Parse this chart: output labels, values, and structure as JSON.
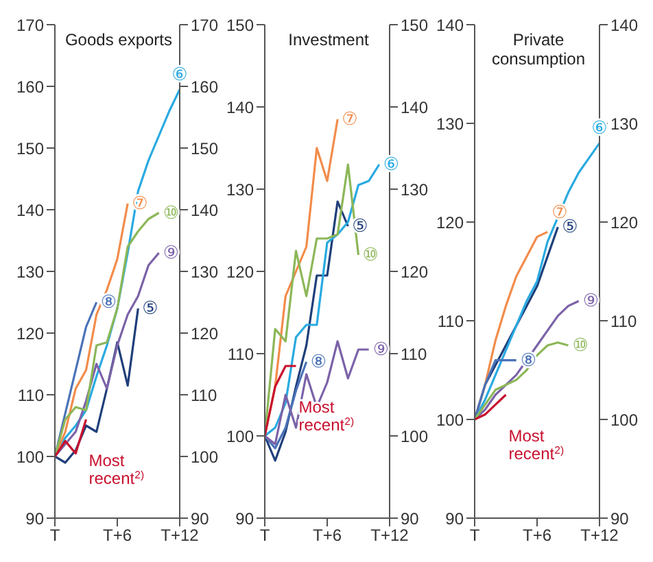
{
  "chart_data": [
    {
      "type": "line",
      "title": "Goods exports",
      "categories": [
        "T",
        null,
        null,
        null,
        null,
        null,
        "T+6",
        null,
        null,
        null,
        null,
        null,
        "T+12"
      ],
      "ylim": [
        90,
        170
      ],
      "yticks": [
        90,
        100,
        110,
        120,
        130,
        140,
        150,
        160,
        170
      ],
      "y2lim": [
        90,
        170
      ],
      "y2ticks": [
        90,
        100,
        110,
        120,
        130,
        140,
        150,
        160,
        170
      ],
      "marker": "none",
      "series": [
        {
          "name": "⑤",
          "color": "#1f3f7a",
          "values": [
            100,
            99,
            101,
            105,
            104,
            111,
            118.5,
            111.5,
            124,
            null,
            null,
            null,
            null
          ]
        },
        {
          "name": "⑥",
          "color": "#29aae1",
          "values": [
            100,
            103,
            105,
            107.5,
            113,
            118,
            124,
            133,
            143,
            148,
            152,
            156,
            159.5
          ]
        },
        {
          "name": "⑦",
          "color": "#f28c4b",
          "values": [
            100,
            104,
            111,
            114,
            123,
            127,
            132,
            141,
            null,
            null,
            null,
            null,
            null
          ]
        },
        {
          "name": "⑧",
          "color": "#4a72b8",
          "values": [
            100,
            107,
            114,
            121,
            125,
            null,
            null,
            null,
            null,
            null,
            null,
            null,
            null
          ]
        },
        {
          "name": "⑨",
          "color": "#7b62a8",
          "values": [
            100,
            102,
            104,
            109,
            115,
            111,
            118,
            123,
            126,
            131,
            133,
            null,
            null
          ]
        },
        {
          "name": "⑩",
          "color": "#8cb758",
          "values": [
            100,
            106,
            108,
            107.5,
            118,
            118.5,
            124,
            134,
            136.5,
            138.5,
            139.5,
            null,
            null
          ]
        },
        {
          "name": "Most recent$^{2)}$",
          "color": "#c8102e",
          "values": [
            100,
            102.5,
            100.5,
            106,
            null,
            null,
            null,
            null,
            null,
            null,
            null,
            null,
            null
          ]
        }
      ]
    },
    {
      "type": "line",
      "title": "Investment",
      "categories": [
        "T",
        null,
        null,
        null,
        null,
        null,
        "T+6",
        null,
        null,
        null,
        null,
        null,
        "T+12"
      ],
      "ylim": [
        90,
        150
      ],
      "yticks": [
        90,
        100,
        110,
        120,
        130,
        140,
        150
      ],
      "y2lim": [
        90,
        150
      ],
      "y2ticks": [
        90,
        100,
        110,
        120,
        130,
        140,
        150
      ],
      "marker": "none",
      "series": [
        {
          "name": "⑤",
          "color": "#1f3f7a",
          "values": [
            100,
            97,
            100.5,
            106,
            111,
            119.5,
            119.5,
            128.5,
            125.5,
            null,
            null,
            null,
            null
          ]
        },
        {
          "name": "⑥",
          "color": "#29aae1",
          "values": [
            100,
            101,
            104,
            112,
            113.5,
            113.5,
            123.5,
            124.5,
            126,
            130.5,
            131,
            133,
            null
          ]
        },
        {
          "name": "⑦",
          "color": "#f28c4b",
          "values": [
            100,
            106,
            117,
            120,
            123,
            135,
            131,
            138.5,
            null,
            null,
            null,
            null,
            null
          ]
        },
        {
          "name": "⑧",
          "color": "#4a72b8",
          "values": [
            100,
            98.5,
            101,
            105.5,
            109,
            null,
            null,
            null,
            null,
            null,
            null,
            null,
            null
          ]
        },
        {
          "name": "⑨",
          "color": "#7b62a8",
          "values": [
            100,
            99,
            105,
            101,
            107.5,
            103.5,
            106.5,
            111.5,
            107,
            110.5,
            110.5,
            null,
            null
          ]
        },
        {
          "name": "⑩",
          "color": "#8cb758",
          "values": [
            100,
            113,
            111.5,
            122.5,
            117,
            124,
            124,
            124.5,
            133,
            122,
            null,
            null,
            null
          ]
        },
        {
          "name": "Most recent$^{2)}$",
          "color": "#c8102e",
          "values": [
            100,
            106,
            108.5,
            108.5,
            null,
            null,
            null,
            null,
            null,
            null,
            null,
            null,
            null
          ]
        }
      ]
    },
    {
      "type": "line",
      "title": "Private consumption",
      "categories": [
        "T",
        null,
        null,
        null,
        null,
        null,
        "T+6",
        null,
        null,
        null,
        null,
        null,
        "T+12"
      ],
      "ylim": [
        90,
        140
      ],
      "yticks": [
        90,
        100,
        110,
        120,
        130,
        140
      ],
      "y2lim": [
        90,
        140
      ],
      "y2ticks": [
        90,
        100,
        110,
        120,
        130,
        140
      ],
      "marker": "none",
      "series": [
        {
          "name": "⑤",
          "color": "#1f3f7a",
          "values": [
            100,
            103.5,
            105.5,
            107.5,
            109.5,
            111.5,
            113.5,
            116.5,
            119.5,
            null,
            null,
            null,
            null
          ]
        },
        {
          "name": "⑥",
          "color": "#29aae1",
          "values": [
            100,
            102,
            104.5,
            107,
            109.5,
            112,
            114,
            118,
            120.5,
            123,
            125,
            126.5,
            128
          ]
        },
        {
          "name": "⑦",
          "color": "#f28c4b",
          "values": [
            100,
            103.5,
            108,
            111.5,
            114.5,
            116.5,
            118.5,
            119,
            null,
            null,
            null,
            null,
            null
          ]
        },
        {
          "name": "⑧",
          "color": "#4a72b8",
          "values": [
            100,
            103.5,
            106,
            106,
            106,
            null,
            null,
            null,
            null,
            null,
            null,
            null,
            null
          ]
        },
        {
          "name": "⑨",
          "color": "#7b62a8",
          "values": [
            100,
            101,
            102.5,
            103.5,
            104.5,
            106,
            107.5,
            109,
            110.5,
            111.5,
            112,
            null,
            null
          ]
        },
        {
          "name": "⑩",
          "color": "#8cb758",
          "values": [
            100,
            101.5,
            103,
            103.5,
            104,
            105,
            106.5,
            107.5,
            107.8,
            107.5,
            null,
            null,
            null
          ]
        },
        {
          "name": "Most recent$^{2)}$",
          "color": "#c8102e",
          "values": [
            100,
            100.5,
            101.5,
            102.5,
            null,
            null,
            null,
            null,
            null,
            null,
            null,
            null,
            null
          ]
        }
      ]
    }
  ]
}
